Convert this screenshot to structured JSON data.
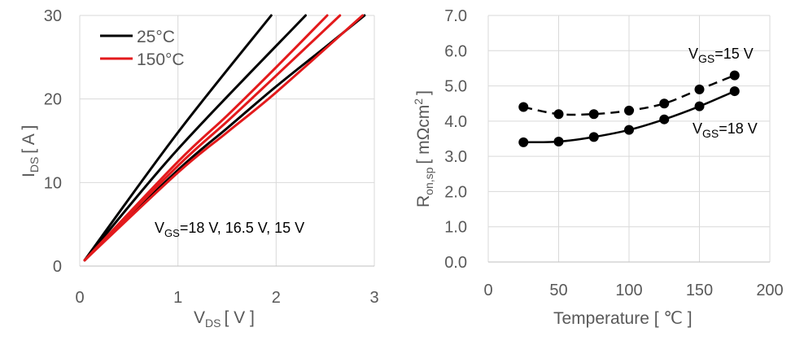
{
  "chart_data": [
    {
      "type": "line",
      "xlabel_main": "V",
      "xlabel_sub": "DS",
      "xlabel_unit": "[ V ]",
      "ylabel_main": "I",
      "ylabel_sub": "DS",
      "ylabel_unit": "[ A ]",
      "xlim": [
        0,
        3
      ],
      "ylim": [
        0,
        30
      ],
      "xticks": [
        0,
        1,
        2,
        3
      ],
      "yticks": [
        0,
        10,
        20,
        30
      ],
      "grid": true,
      "legend_position": "top-left",
      "legend": [
        {
          "label": "25°C",
          "color": "#000000"
        },
        {
          "label": "150°C",
          "color": "#e31a1c"
        }
      ],
      "annotation": {
        "main": "V",
        "sub": "GS",
        "text": "=18 V, 16.5 V, 15 V"
      },
      "series": [
        {
          "group": "25°C",
          "color": "#000000",
          "x": [
            0.05,
            1.0,
            1.95
          ],
          "y": [
            0.7,
            16.0,
            30.0
          ]
        },
        {
          "group": "25°C",
          "color": "#000000",
          "x": [
            0.05,
            1.0,
            2.3
          ],
          "y": [
            0.7,
            14.0,
            30.0
          ]
        },
        {
          "group": "25°C",
          "color": "#000000",
          "x": [
            0.05,
            1.0,
            1.5,
            2.0,
            2.5,
            2.9
          ],
          "y": [
            0.7,
            11.5,
            16.5,
            21.5,
            26.2,
            30.0
          ]
        },
        {
          "group": "150°C",
          "color": "#e31a1c",
          "x": [
            0.05,
            1.0,
            1.5,
            2.0,
            2.52
          ],
          "y": [
            0.7,
            12.5,
            18.0,
            23.8,
            30.0
          ]
        },
        {
          "group": "150°C",
          "color": "#e31a1c",
          "x": [
            0.05,
            1.0,
            1.5,
            2.0,
            2.65
          ],
          "y": [
            0.7,
            12.0,
            17.3,
            22.8,
            30.0
          ]
        },
        {
          "group": "150°C",
          "color": "#e31a1c",
          "x": [
            0.05,
            1.0,
            1.5,
            2.0,
            2.88
          ],
          "y": [
            0.7,
            11.2,
            16.0,
            20.8,
            30.0
          ]
        }
      ]
    },
    {
      "type": "line",
      "xlabel": "Temperature [ ℃ ]",
      "ylabel_main": "R",
      "ylabel_sub": "on,sp",
      "ylabel_unit": "[ mΩcm",
      "ylabel_sup": "2",
      "ylabel_end": "]",
      "xlim": [
        0,
        200
      ],
      "ylim": [
        0,
        7
      ],
      "xticks": [
        0,
        50,
        100,
        150,
        200
      ],
      "yticks": [
        "0.0",
        "1.0",
        "2.0",
        "3.0",
        "4.0",
        "5.0",
        "6.0",
        "7.0"
      ],
      "grid": true,
      "series": [
        {
          "label_main": "V",
          "label_sub": "GS",
          "label_rest": "=15 V",
          "style": "dashed",
          "color": "#000000",
          "x": [
            25,
            50,
            75,
            100,
            125,
            150,
            175
          ],
          "y": [
            4.4,
            4.2,
            4.2,
            4.3,
            4.5,
            4.9,
            5.3
          ]
        },
        {
          "label_main": "V",
          "label_sub": "GS",
          "label_rest": "=18 V",
          "style": "solid",
          "color": "#000000",
          "x": [
            25,
            50,
            75,
            100,
            125,
            150,
            175
          ],
          "y": [
            3.4,
            3.42,
            3.55,
            3.75,
            4.05,
            4.42,
            4.85
          ]
        }
      ]
    }
  ]
}
